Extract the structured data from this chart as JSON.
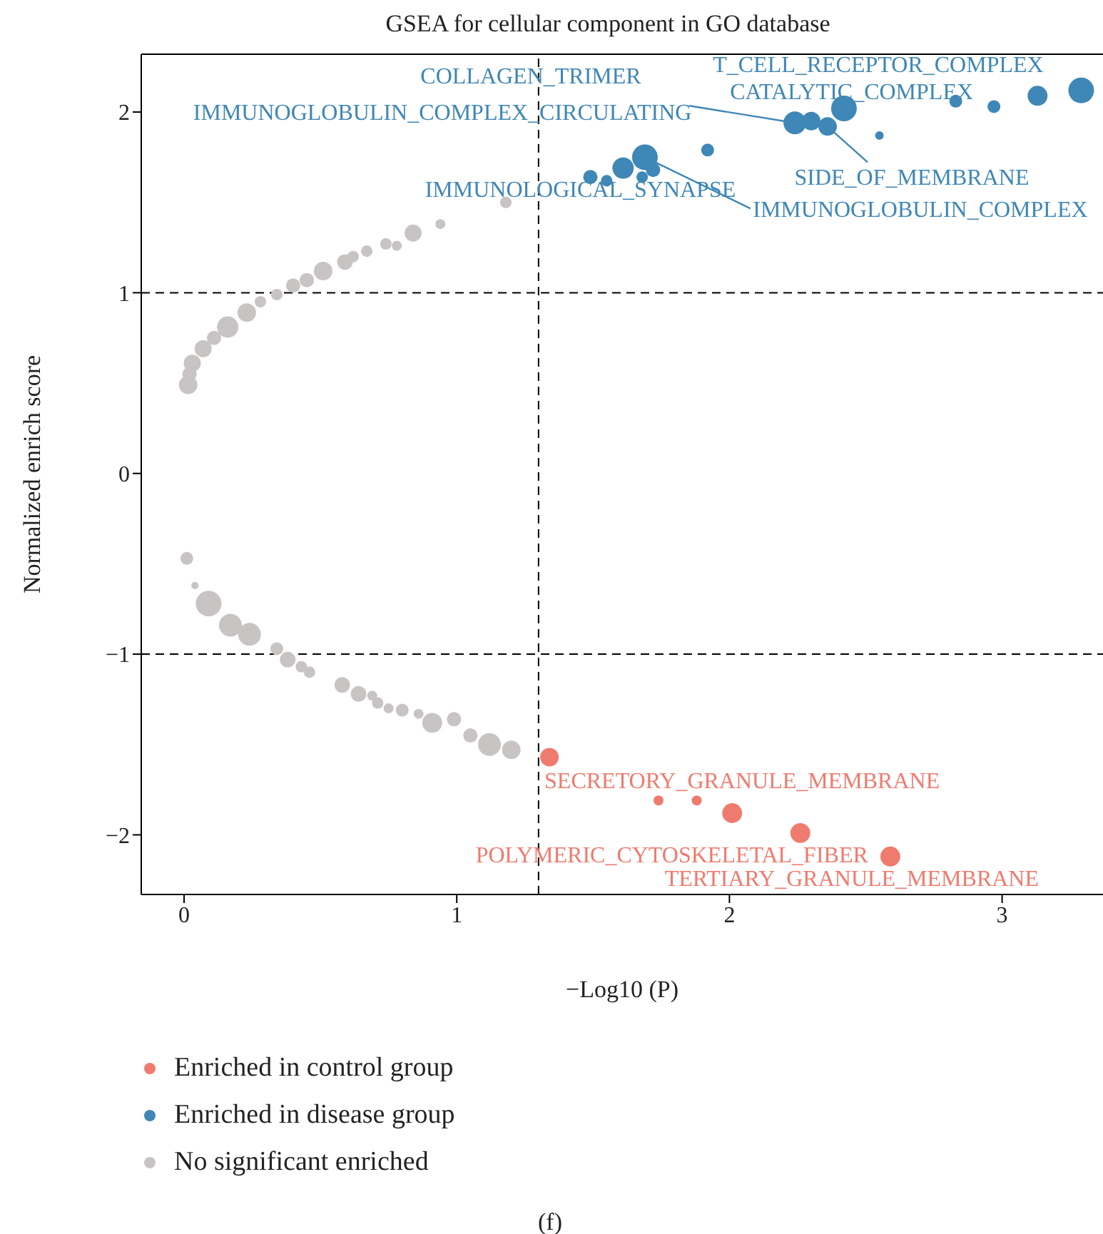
{
  "chart_data": {
    "type": "bubble",
    "title": "GSEA for cellular component in GO database",
    "xlabel": "−Log10 (P)",
    "ylabel": "Normalized enrich score",
    "xlim": [
      -0.157,
      3.37
    ],
    "ylim": [
      -2.33,
      2.32
    ],
    "xticks": [
      0,
      1,
      2,
      3
    ],
    "yticks": [
      {
        "value": -2,
        "label": "−2"
      },
      {
        "value": -1,
        "label": "−1"
      },
      0,
      1,
      2
    ],
    "grid": false,
    "legend": "bottom",
    "marker": "circle",
    "ref_lines": [
      {
        "axis": "x",
        "value": 1.3,
        "color": "#000000",
        "line_style": "dashed"
      },
      {
        "axis": "y",
        "value": 1,
        "color": "#000000",
        "line_style": "dashed"
      },
      {
        "axis": "y",
        "value": -1,
        "color": "#000000",
        "line_style": "dashed"
      }
    ],
    "series": [
      {
        "name": "Enriched in control group",
        "color": "#ef7b6e",
        "x": [
          1.34,
          1.74,
          1.88,
          2.01,
          2.26,
          2.59
        ],
        "values": [
          -1.57,
          -1.81,
          -1.81,
          -1.88,
          -1.99,
          -2.12
        ],
        "sizes": [
          0.52,
          0.15,
          0.15,
          0.6,
          0.6,
          0.6
        ]
      },
      {
        "name": "Enriched in disease group",
        "color": "#3f87b6",
        "x": [
          3.29,
          3.13,
          2.97,
          2.83,
          2.55,
          2.42,
          2.36,
          2.3,
          2.24,
          1.92,
          1.69,
          1.61,
          1.72,
          1.68,
          1.55,
          1.49
        ],
        "values": [
          2.12,
          2.09,
          2.03,
          2.06,
          1.87,
          2.02,
          1.92,
          1.95,
          1.94,
          1.79,
          1.75,
          1.69,
          1.68,
          1.64,
          1.62,
          1.64
        ],
        "sizes": [
          1,
          0.6,
          0.25,
          0.25,
          0.11,
          1,
          0.52,
          0.52,
          0.79,
          0.25,
          1,
          0.69,
          0.31,
          0.2,
          0.2,
          0.31
        ]
      },
      {
        "name": "No significant enriched",
        "color": "#c8c4c3",
        "x": [
          1.18,
          0.94,
          0.84,
          0.78,
          0.74,
          0.67,
          0.62,
          0.59,
          0.51,
          0.45,
          0.4,
          0.34,
          0.28,
          0.23,
          0.16,
          0.11,
          0.07,
          0.03,
          0.02,
          0.015,
          0.01,
          0.04,
          0.09,
          0.17,
          0.24,
          0.34,
          0.38,
          0.43,
          0.46,
          0.58,
          0.64,
          0.69,
          0.71,
          0.75,
          0.8,
          0.86,
          0.91,
          0.99,
          1.05,
          1.12,
          1.2
        ],
        "values": [
          1.5,
          1.38,
          1.33,
          1.26,
          1.27,
          1.23,
          1.2,
          1.17,
          1.12,
          1.07,
          1.04,
          0.99,
          0.95,
          0.89,
          0.81,
          0.75,
          0.69,
          0.61,
          0.55,
          0.49,
          -0.47,
          -0.62,
          -0.72,
          -0.84,
          -0.89,
          -0.97,
          -1.03,
          -1.07,
          -1.1,
          -1.17,
          -1.22,
          -1.23,
          -1.27,
          -1.3,
          -1.31,
          -1.33,
          -1.38,
          -1.36,
          -1.45,
          -1.5,
          -1.53
        ],
        "sizes": [
          0.2,
          0.15,
          0.44,
          0.15,
          0.2,
          0.2,
          0.2,
          0.37,
          0.52,
          0.31,
          0.31,
          0.2,
          0.2,
          0.52,
          0.69,
          0.31,
          0.44,
          0.44,
          0.31,
          0.52,
          0.25,
          0.08,
          1,
          0.79,
          0.79,
          0.25,
          0.37,
          0.2,
          0.2,
          0.37,
          0.37,
          0.15,
          0.2,
          0.15,
          0.25,
          0.15,
          0.6,
          0.31,
          0.31,
          0.79,
          0.52
        ]
      }
    ],
    "annotations": [
      "COLLAGEN_TRIMER",
      {
        "text": "T_CELL_RECEPTOR_COMPLEX",
        "x": 2.42,
        "y": 2.02
      },
      {
        "text": "IMMUNOGLOBULIN_COMPLEX_CIRCULATING",
        "x": 2.24,
        "y": 1.94
      },
      {
        "text": "CATALYTIC_COMPLEX",
        "x": 2.83,
        "y": 2.06
      },
      {
        "text": "IMMUNOGLOBULIN_COMPLEX",
        "x": 1.69,
        "y": 1.75
      },
      {
        "text": "SIDE_OF_MEMBRANE",
        "x": 2.36,
        "y": 1.92
      },
      {
        "text": "IMMUNOLOGICAL_SYNAPSE",
        "x": 1.49,
        "y": 1.64
      },
      {
        "text": "SECRETORY_GRANULE_MEMBRANE",
        "x": 1.34,
        "y": -1.57
      },
      {
        "text": "POLYMERIC_CYTOSKELETAL_FIBER",
        "x": 2.26,
        "y": -1.99
      },
      {
        "text": "TERTIARY_GRANULE_MEMBRANE",
        "x": 2.59,
        "y": -2.12
      },
      "(f)"
    ]
  }
}
